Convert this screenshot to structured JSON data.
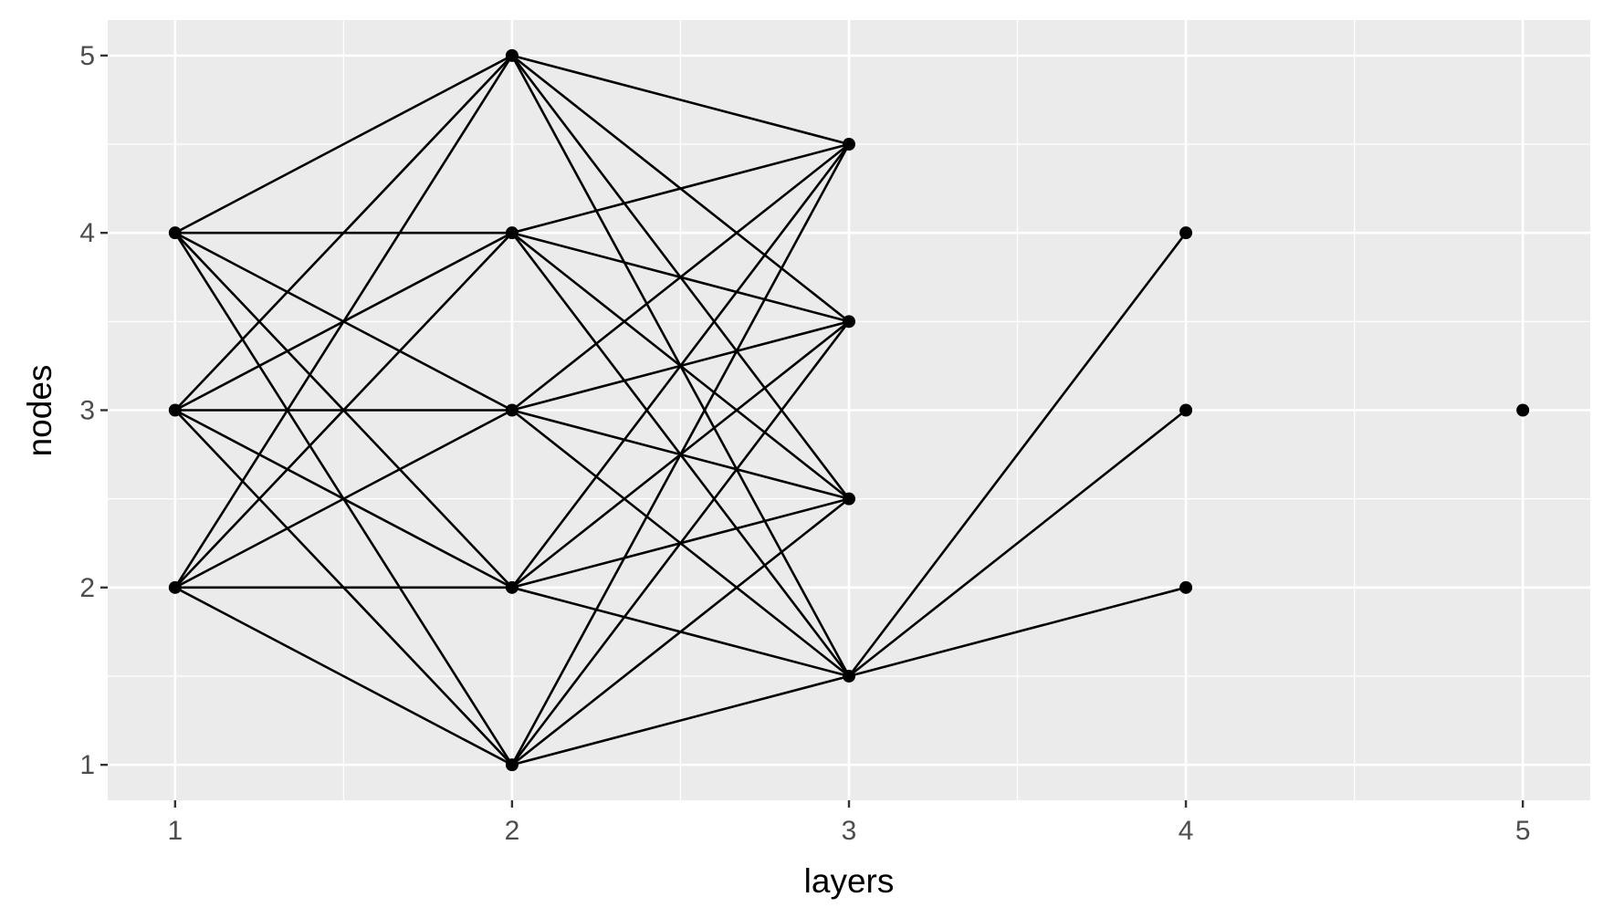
{
  "chart_data": {
    "type": "network",
    "xlabel": "layers",
    "ylabel": "nodes",
    "xlim": [
      0.8,
      5.2
    ],
    "ylim": [
      0.8,
      5.2
    ],
    "xticks": [
      1,
      2,
      3,
      4,
      5
    ],
    "yticks": [
      1,
      2,
      3,
      4,
      5
    ],
    "grid": true,
    "nodes": [
      {
        "layer": 1,
        "value": 2
      },
      {
        "layer": 1,
        "value": 3
      },
      {
        "layer": 1,
        "value": 4
      },
      {
        "layer": 2,
        "value": 1
      },
      {
        "layer": 2,
        "value": 2
      },
      {
        "layer": 2,
        "value": 3
      },
      {
        "layer": 2,
        "value": 4
      },
      {
        "layer": 2,
        "value": 5
      },
      {
        "layer": 3,
        "value": 1.5
      },
      {
        "layer": 3,
        "value": 2.5
      },
      {
        "layer": 3,
        "value": 3.5
      },
      {
        "layer": 3,
        "value": 4.5
      },
      {
        "layer": 4,
        "value": 2
      },
      {
        "layer": 4,
        "value": 3
      },
      {
        "layer": 4,
        "value": 4
      },
      {
        "layer": 5,
        "value": 3
      }
    ],
    "edges": [
      {
        "from": [
          1,
          4
        ],
        "to": [
          2,
          5
        ]
      },
      {
        "from": [
          1,
          4
        ],
        "to": [
          2,
          4
        ]
      },
      {
        "from": [
          1,
          4
        ],
        "to": [
          2,
          3
        ]
      },
      {
        "from": [
          1,
          4
        ],
        "to": [
          2,
          2
        ]
      },
      {
        "from": [
          1,
          4
        ],
        "to": [
          2,
          1
        ]
      },
      {
        "from": [
          1,
          3
        ],
        "to": [
          2,
          5
        ]
      },
      {
        "from": [
          1,
          3
        ],
        "to": [
          2,
          4
        ]
      },
      {
        "from": [
          1,
          3
        ],
        "to": [
          2,
          3
        ]
      },
      {
        "from": [
          1,
          3
        ],
        "to": [
          2,
          2
        ]
      },
      {
        "from": [
          1,
          3
        ],
        "to": [
          2,
          1
        ]
      },
      {
        "from": [
          1,
          2
        ],
        "to": [
          2,
          5
        ]
      },
      {
        "from": [
          1,
          2
        ],
        "to": [
          2,
          4
        ]
      },
      {
        "from": [
          1,
          2
        ],
        "to": [
          2,
          3
        ]
      },
      {
        "from": [
          1,
          2
        ],
        "to": [
          2,
          2
        ]
      },
      {
        "from": [
          1,
          2
        ],
        "to": [
          2,
          1
        ]
      },
      {
        "from": [
          2,
          5
        ],
        "to": [
          3,
          4.5
        ]
      },
      {
        "from": [
          2,
          5
        ],
        "to": [
          3,
          3.5
        ]
      },
      {
        "from": [
          2,
          5
        ],
        "to": [
          3,
          2.5
        ]
      },
      {
        "from": [
          2,
          5
        ],
        "to": [
          3,
          1.5
        ]
      },
      {
        "from": [
          2,
          4
        ],
        "to": [
          3,
          4.5
        ]
      },
      {
        "from": [
          2,
          4
        ],
        "to": [
          3,
          3.5
        ]
      },
      {
        "from": [
          2,
          4
        ],
        "to": [
          3,
          2.5
        ]
      },
      {
        "from": [
          2,
          4
        ],
        "to": [
          3,
          1.5
        ]
      },
      {
        "from": [
          2,
          3
        ],
        "to": [
          3,
          4.5
        ]
      },
      {
        "from": [
          2,
          3
        ],
        "to": [
          3,
          3.5
        ]
      },
      {
        "from": [
          2,
          3
        ],
        "to": [
          3,
          2.5
        ]
      },
      {
        "from": [
          2,
          3
        ],
        "to": [
          3,
          1.5
        ]
      },
      {
        "from": [
          2,
          2
        ],
        "to": [
          3,
          4.5
        ]
      },
      {
        "from": [
          2,
          2
        ],
        "to": [
          3,
          3.5
        ]
      },
      {
        "from": [
          2,
          2
        ],
        "to": [
          3,
          2.5
        ]
      },
      {
        "from": [
          2,
          2
        ],
        "to": [
          3,
          1.5
        ]
      },
      {
        "from": [
          2,
          1
        ],
        "to": [
          3,
          4.5
        ]
      },
      {
        "from": [
          2,
          1
        ],
        "to": [
          3,
          3.5
        ]
      },
      {
        "from": [
          2,
          1
        ],
        "to": [
          3,
          2.5
        ]
      },
      {
        "from": [
          2,
          1
        ],
        "to": [
          3,
          1.5
        ]
      },
      {
        "from": [
          3,
          1.5
        ],
        "to": [
          4,
          4
        ]
      },
      {
        "from": [
          3,
          1.5
        ],
        "to": [
          4,
          3
        ]
      },
      {
        "from": [
          3,
          1.5
        ],
        "to": [
          4,
          2
        ]
      }
    ]
  }
}
